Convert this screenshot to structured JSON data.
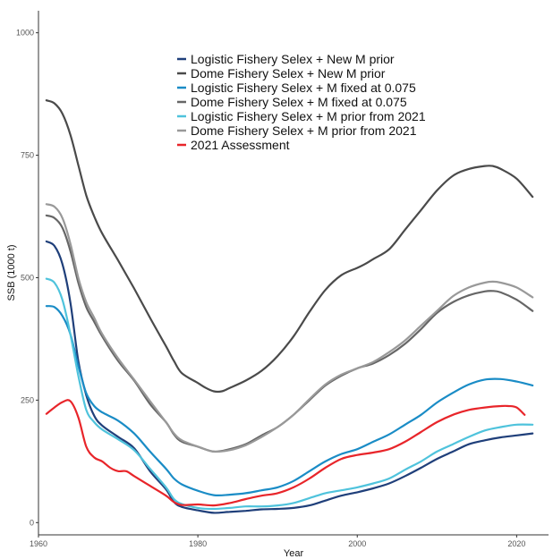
{
  "chart_data": {
    "type": "line",
    "xlabel": "Year",
    "ylabel": "SSB (1000 t)",
    "xlim": [
      1960,
      2024
    ],
    "ylim": [
      -25,
      1045
    ],
    "xticks": [
      1960,
      1980,
      2000,
      2020
    ],
    "yticks": [
      0,
      250,
      500,
      750,
      1000
    ],
    "grid": false,
    "legend_position": "top-center",
    "series": [
      {
        "name": "Logistic Fishery Selex + New M prior",
        "color": "#1f3f7a",
        "x": [
          1961,
          1962,
          1963,
          1964,
          1965,
          1966,
          1967,
          1968,
          1970,
          1972,
          1974,
          1976,
          1977,
          1978,
          1980,
          1982,
          1984,
          1986,
          1988,
          1990,
          1992,
          1994,
          1996,
          1998,
          2000,
          2002,
          2004,
          2006,
          2008,
          2010,
          2012,
          2014,
          2016,
          2018,
          2020,
          2022
        ],
        "y": [
          574,
          565,
          528,
          450,
          330,
          260,
          218,
          198,
          175,
          152,
          105,
          68,
          42,
          32,
          25,
          20,
          22,
          24,
          27,
          28,
          30,
          35,
          45,
          55,
          62,
          70,
          80,
          95,
          112,
          130,
          145,
          160,
          168,
          174,
          178,
          182
        ]
      },
      {
        "name": "Dome Fishery Selex + New M prior",
        "color": "#4a4a4a",
        "x": [
          1961,
          1962,
          1963,
          1964,
          1965,
          1966,
          1967,
          1968,
          1970,
          1972,
          1974,
          1976,
          1977,
          1978,
          1980,
          1981,
          1982,
          1983,
          1984,
          1986,
          1988,
          1990,
          1992,
          1994,
          1996,
          1998,
          2000,
          2001,
          2002,
          2004,
          2006,
          2008,
          2010,
          2012,
          2014,
          2016,
          2017,
          2018,
          2020,
          2022
        ],
        "y": [
          862,
          856,
          835,
          792,
          730,
          668,
          625,
          590,
          535,
          478,
          418,
          360,
          330,
          305,
          285,
          275,
          268,
          268,
          275,
          290,
          310,
          340,
          380,
          430,
          475,
          505,
          520,
          528,
          538,
          558,
          598,
          638,
          678,
          708,
          722,
          728,
          728,
          722,
          702,
          665
        ]
      },
      {
        "name": "Logistic Fishery Selex + M fixed at 0.075",
        "color": "#1a8cc6",
        "x": [
          1961,
          1962,
          1963,
          1964,
          1965,
          1966,
          1967,
          1968,
          1970,
          1972,
          1974,
          1976,
          1977,
          1978,
          1980,
          1982,
          1984,
          1986,
          1988,
          1990,
          1992,
          1994,
          1996,
          1998,
          2000,
          2002,
          2004,
          2006,
          2008,
          2010,
          2012,
          2014,
          2016,
          2018,
          2020,
          2022
        ],
        "y": [
          442,
          440,
          422,
          385,
          320,
          264,
          238,
          225,
          208,
          182,
          145,
          110,
          90,
          78,
          65,
          56,
          57,
          60,
          66,
          72,
          85,
          105,
          125,
          140,
          150,
          165,
          180,
          200,
          220,
          245,
          265,
          282,
          292,
          293,
          288,
          280
        ]
      },
      {
        "name": "Dome Fishery Selex + M fixed at 0.075",
        "color": "#666666",
        "x": [
          1961,
          1962,
          1963,
          1964,
          1965,
          1966,
          1967,
          1968,
          1970,
          1972,
          1974,
          1976,
          1977,
          1978,
          1980,
          1982,
          1984,
          1986,
          1988,
          1990,
          1992,
          1994,
          1996,
          1998,
          2000,
          2002,
          2004,
          2006,
          2008,
          2010,
          2012,
          2014,
          2016,
          2017,
          2018,
          2020,
          2022
        ],
        "y": [
          627,
          622,
          602,
          555,
          490,
          440,
          410,
          380,
          330,
          290,
          242,
          205,
          180,
          165,
          155,
          145,
          150,
          160,
          178,
          195,
          220,
          250,
          280,
          300,
          315,
          325,
          342,
          365,
          395,
          428,
          450,
          464,
          472,
          473,
          470,
          455,
          432
        ]
      },
      {
        "name": "Logistic Fishery Selex + M prior from 2021",
        "color": "#4fc3dc",
        "x": [
          1961,
          1962,
          1963,
          1964,
          1965,
          1966,
          1967,
          1968,
          1970,
          1972,
          1974,
          1976,
          1977,
          1978,
          1980,
          1982,
          1984,
          1986,
          1988,
          1990,
          1992,
          1994,
          1996,
          1998,
          2000,
          2002,
          2004,
          2006,
          2008,
          2010,
          2012,
          2014,
          2016,
          2018,
          2020,
          2022
        ],
        "y": [
          498,
          490,
          455,
          385,
          300,
          230,
          205,
          190,
          170,
          148,
          110,
          72,
          48,
          38,
          30,
          28,
          30,
          33,
          33,
          35,
          40,
          50,
          60,
          66,
          72,
          80,
          90,
          108,
          125,
          145,
          160,
          175,
          188,
          195,
          200,
          200
        ]
      },
      {
        "name": "Dome Fishery Selex +  M prior from 2021",
        "color": "#999999",
        "x": [
          1961,
          1962,
          1963,
          1964,
          1965,
          1966,
          1967,
          1968,
          1970,
          1972,
          1974,
          1976,
          1977,
          1978,
          1980,
          1982,
          1984,
          1986,
          1988,
          1990,
          1992,
          1994,
          1996,
          1998,
          2000,
          2002,
          2004,
          2006,
          2008,
          2010,
          2012,
          2014,
          2016,
          2017,
          2018,
          2020,
          2022
        ],
        "y": [
          650,
          645,
          622,
          570,
          500,
          450,
          418,
          385,
          335,
          292,
          248,
          205,
          182,
          168,
          155,
          145,
          148,
          158,
          175,
          195,
          220,
          252,
          282,
          302,
          315,
          328,
          348,
          372,
          402,
          432,
          462,
          480,
          490,
          492,
          490,
          480,
          460
        ]
      },
      {
        "name": "2021 Assessment",
        "color": "#e8252a",
        "x": [
          1961,
          1962,
          1963,
          1964,
          1965,
          1966,
          1967,
          1968,
          1969,
          1970,
          1971,
          1972,
          1974,
          1976,
          1977,
          1978,
          1980,
          1982,
          1984,
          1986,
          1988,
          1990,
          1992,
          1994,
          1996,
          1998,
          2000,
          2002,
          2004,
          2006,
          2008,
          2010,
          2012,
          2014,
          2016,
          2018,
          2019,
          2020,
          2021
        ],
        "y": [
          222,
          235,
          246,
          248,
          215,
          155,
          133,
          125,
          112,
          105,
          105,
          95,
          75,
          55,
          42,
          36,
          37,
          35,
          40,
          48,
          55,
          60,
          72,
          90,
          112,
          130,
          138,
          143,
          150,
          165,
          185,
          205,
          220,
          230,
          235,
          238,
          238,
          235,
          220
        ]
      }
    ]
  }
}
